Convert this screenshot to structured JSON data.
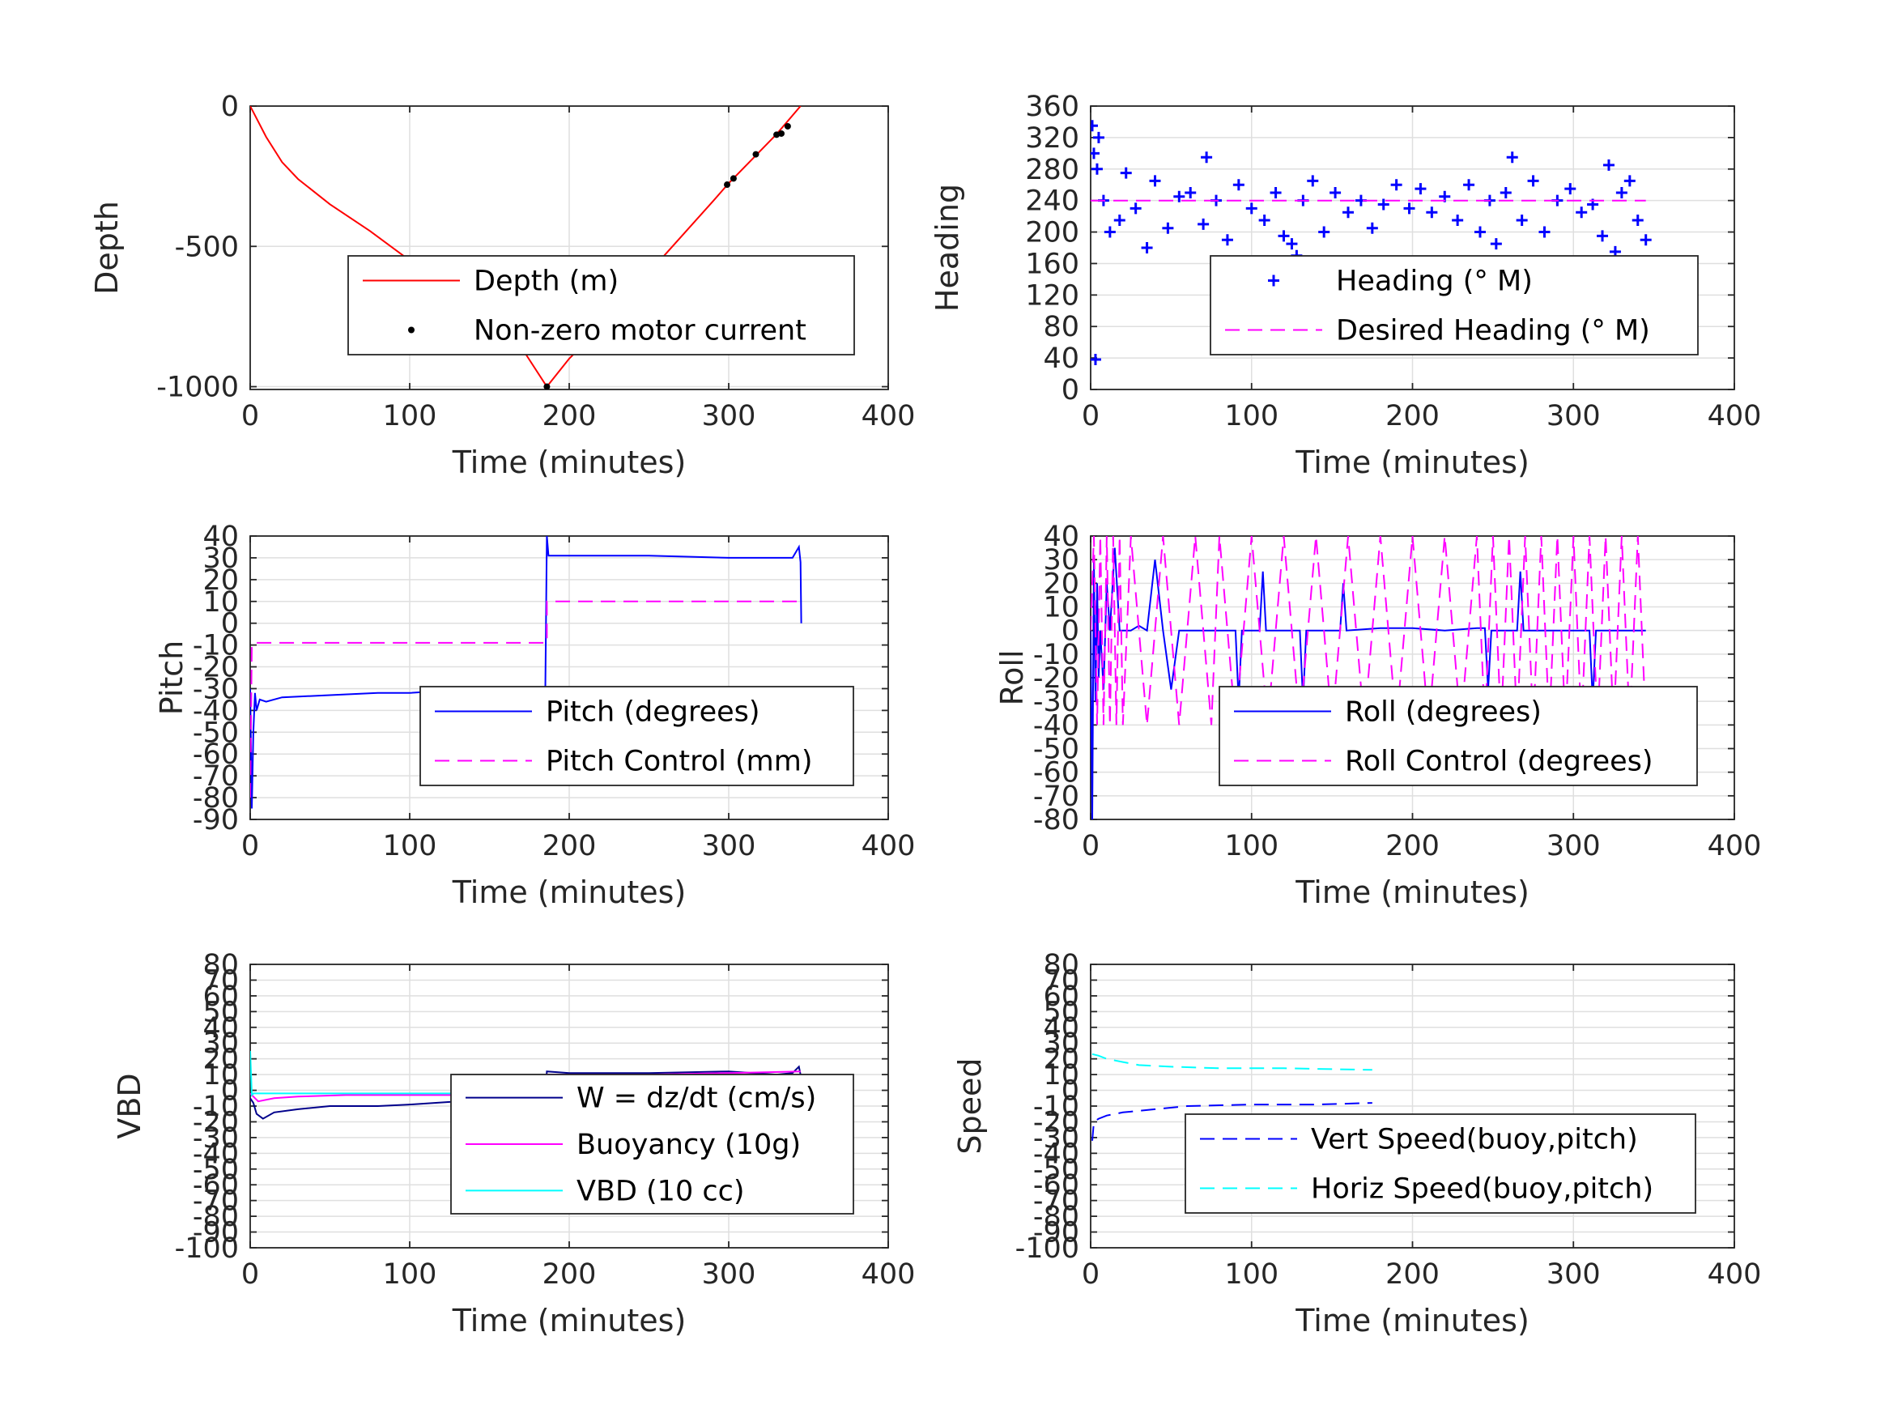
{
  "chart_data": [
    {
      "id": "depth",
      "type": "line",
      "xlabel": "Time (minutes)",
      "ylabel": "Depth",
      "xlim": [
        0,
        400
      ],
      "ylim": [
        -1010,
        0
      ],
      "xticks": [
        0,
        100,
        200,
        300,
        400
      ],
      "yticks": [
        -1000,
        -500,
        0
      ],
      "ytick_labels": [
        "-1000",
        "-500",
        "0"
      ],
      "grid": true,
      "legend_location": "south-east",
      "series": [
        {
          "name": "Depth (m)",
          "style": "solid",
          "marker": "none",
          "color": "#ff0000",
          "x": [
            0,
            10,
            20,
            30,
            50,
            75,
            100,
            125,
            150,
            170,
            186,
            200,
            230,
            260,
            290,
            300,
            318,
            330,
            345
          ],
          "y": [
            0,
            -110,
            -200,
            -260,
            -350,
            -445,
            -550,
            -660,
            -760,
            -860,
            -1000,
            -900,
            -730,
            -530,
            -340,
            -275,
            -170,
            -100,
            0
          ]
        },
        {
          "name": "Non-zero motor current",
          "style": "none",
          "marker": "dot",
          "color": "#000000",
          "x": [
            186,
            299,
            303,
            317,
            330,
            333,
            337
          ],
          "y": [
            -1000,
            -280,
            -258,
            -172,
            -102,
            -98,
            -72
          ]
        }
      ]
    },
    {
      "id": "heading",
      "type": "scatter",
      "xlabel": "Time (minutes)",
      "ylabel": "Heading",
      "xlim": [
        0,
        400
      ],
      "ylim": [
        0,
        360
      ],
      "xticks": [
        0,
        100,
        200,
        300,
        400
      ],
      "yticks": [
        0,
        40,
        80,
        120,
        160,
        200,
        240,
        280,
        320,
        360
      ],
      "grid": true,
      "legend_location": "south-east",
      "series": [
        {
          "name": "Heading (° M)",
          "style": "none",
          "marker": "plus",
          "color": "#0000ff",
          "x": [
            1,
            2,
            3,
            4,
            5,
            8,
            12,
            18,
            22,
            28,
            35,
            40,
            48,
            55,
            62,
            70,
            72,
            78,
            85,
            92,
            100,
            108,
            115,
            120,
            125,
            128,
            132,
            138,
            145,
            152,
            160,
            168,
            175,
            182,
            190,
            198,
            205,
            212,
            220,
            228,
            235,
            242,
            248,
            252,
            258,
            262,
            268,
            275,
            282,
            290,
            298,
            305,
            312,
            318,
            322,
            326,
            330,
            335,
            340,
            345
          ],
          "y": [
            335,
            300,
            38,
            280,
            320,
            240,
            200,
            215,
            275,
            230,
            180,
            265,
            205,
            245,
            250,
            210,
            295,
            240,
            190,
            260,
            230,
            215,
            250,
            195,
            185,
            170,
            240,
            265,
            200,
            250,
            225,
            240,
            205,
            235,
            260,
            230,
            255,
            225,
            245,
            215,
            260,
            200,
            240,
            185,
            250,
            295,
            215,
            265,
            200,
            240,
            255,
            225,
            235,
            195,
            285,
            175,
            250,
            265,
            215,
            190
          ]
        },
        {
          "name": "Desired Heading (° M)",
          "style": "dashed",
          "marker": "none",
          "color": "#ff00ff",
          "x": [
            0,
            345
          ],
          "y": [
            240,
            240
          ]
        }
      ]
    },
    {
      "id": "pitch",
      "type": "line",
      "xlabel": "Time (minutes)",
      "ylabel": "Pitch",
      "xlim": [
        0,
        400
      ],
      "ylim": [
        -90,
        40
      ],
      "xticks": [
        0,
        100,
        200,
        300,
        400
      ],
      "yticks": [
        -90,
        -80,
        -70,
        -60,
        -50,
        -40,
        -30,
        -20,
        -10,
        0,
        10,
        20,
        30,
        40
      ],
      "grid": true,
      "legend_location": "south-east",
      "series": [
        {
          "name": "Pitch (degrees)",
          "style": "solid",
          "marker": "none",
          "color": "#0000ff",
          "x": [
            0,
            1,
            2,
            3,
            4,
            6,
            10,
            20,
            50,
            80,
            100,
            120,
            150,
            170,
            185,
            186,
            187,
            200,
            250,
            300,
            330,
            340,
            344,
            345,
            345.5
          ],
          "y": [
            -30,
            -85,
            -50,
            -32,
            -40,
            -35,
            -36,
            -34,
            -33,
            -32,
            -32,
            -31,
            -32,
            -31,
            -30,
            40,
            31,
            31,
            31,
            30,
            30,
            30,
            35,
            28,
            0
          ]
        },
        {
          "name": "Pitch Control (mm)",
          "style": "dashed",
          "marker": "none",
          "color": "#ff00ff",
          "x": [
            0,
            1,
            2,
            186,
            186,
            345
          ],
          "y": [
            -80,
            -10,
            -9,
            -9,
            10,
            10
          ]
        }
      ]
    },
    {
      "id": "roll",
      "type": "line",
      "xlabel": "Time (minutes)",
      "ylabel": "Roll",
      "xlim": [
        0,
        400
      ],
      "ylim": [
        -80,
        40
      ],
      "xticks": [
        0,
        100,
        200,
        300,
        400
      ],
      "yticks": [
        -80,
        -70,
        -60,
        -50,
        -40,
        -30,
        -20,
        -10,
        0,
        10,
        20,
        30,
        40
      ],
      "grid": true,
      "legend_location": "south-east",
      "series": [
        {
          "name": "Roll (degrees)",
          "style": "solid",
          "marker": "none",
          "color": "#0000ff",
          "x": [
            0,
            1,
            2,
            3,
            4,
            5,
            6,
            8,
            10,
            12,
            15,
            18,
            25,
            30,
            35,
            40,
            45,
            50,
            55,
            60,
            70,
            80,
            90,
            92,
            94,
            100,
            105,
            107,
            109,
            120,
            130,
            132,
            134,
            150,
            155,
            157,
            159,
            180,
            200,
            220,
            240,
            245,
            247,
            249,
            260,
            265,
            267,
            269,
            280,
            300,
            310,
            312,
            314,
            330,
            340,
            345
          ],
          "y": [
            0,
            -80,
            30,
            -30,
            20,
            -20,
            0,
            -25,
            20,
            0,
            35,
            0,
            0,
            2,
            0,
            30,
            0,
            -25,
            0,
            0,
            0,
            0,
            0,
            -30,
            0,
            0,
            0,
            25,
            0,
            0,
            0,
            -30,
            0,
            0,
            0,
            20,
            0,
            1,
            1,
            0,
            1,
            1,
            -25,
            0,
            0,
            0,
            25,
            0,
            0,
            0,
            0,
            -30,
            0,
            0,
            0,
            0
          ]
        },
        {
          "name": "Roll Control (degrees)",
          "style": "dashed",
          "marker": "none",
          "color": "#ff00ff",
          "x": [
            0,
            2,
            4,
            6,
            8,
            10,
            12,
            14,
            16,
            18,
            20,
            25,
            35,
            45,
            55,
            65,
            75,
            80,
            90,
            100,
            110,
            120,
            130,
            140,
            150,
            160,
            170,
            180,
            190,
            200,
            210,
            220,
            230,
            240,
            245,
            250,
            255,
            260,
            265,
            270,
            275,
            280,
            285,
            290,
            295,
            300,
            305,
            310,
            315,
            320,
            325,
            330,
            335,
            340,
            345
          ],
          "y": [
            0,
            40,
            -40,
            40,
            -40,
            40,
            -40,
            40,
            -40,
            40,
            -40,
            40,
            -40,
            40,
            -40,
            40,
            -40,
            40,
            -40,
            40,
            -40,
            40,
            -40,
            40,
            -40,
            40,
            -40,
            40,
            -40,
            40,
            -40,
            40,
            -40,
            40,
            -40,
            40,
            -40,
            40,
            -40,
            40,
            -40,
            40,
            -40,
            40,
            -40,
            40,
            -40,
            40,
            -40,
            40,
            -40,
            40,
            -40,
            40,
            -40
          ]
        }
      ]
    },
    {
      "id": "vbd",
      "type": "line",
      "xlabel": "Time (minutes)",
      "ylabel": "VBD",
      "xlim": [
        0,
        400
      ],
      "ylim": [
        -100,
        80
      ],
      "xticks": [
        0,
        100,
        200,
        300,
        400
      ],
      "yticks": [
        -100,
        -90,
        -80,
        -70,
        -60,
        -50,
        -40,
        -30,
        -20,
        -10,
        0,
        10,
        20,
        30,
        40,
        50,
        60,
        70,
        80
      ],
      "ytick_labels": [
        "-100",
        "-90",
        "-80",
        "-70",
        "-60",
        "-50",
        "-40",
        "-30",
        "-20",
        "-10",
        "0",
        "10",
        "20",
        "30",
        "40",
        "50",
        "60",
        "70",
        "80"
      ],
      "grid": true,
      "legend_location": "south-east",
      "series": [
        {
          "name": "W = dz/dt (cm/s)",
          "style": "solid",
          "marker": "none",
          "color": "#00008b",
          "x": [
            0,
            2,
            4,
            8,
            15,
            30,
            50,
            80,
            100,
            130,
            160,
            185,
            186,
            200,
            250,
            300,
            330,
            340,
            344,
            345
          ],
          "y": [
            -5,
            -8,
            -15,
            -18,
            -14,
            -12,
            -10,
            -10,
            -9,
            -7,
            -4,
            -3,
            12,
            11,
            11,
            12,
            10,
            11,
            15,
            10
          ]
        },
        {
          "name": "Buoyancy (10g)",
          "style": "solid",
          "marker": "none",
          "color": "#ff00ff",
          "x": [
            0,
            5,
            15,
            30,
            60,
            100,
            150,
            185,
            186,
            200,
            250,
            300,
            345
          ],
          "y": [
            -2,
            -7,
            -5,
            -4,
            -3,
            -3,
            -3,
            -3,
            10,
            10,
            10,
            11,
            12
          ]
        },
        {
          "name": "VBD (10 cc)",
          "style": "solid",
          "marker": "none",
          "color": "#00ffff",
          "x": [
            0,
            1,
            2,
            186,
            187,
            250,
            300,
            345
          ],
          "y": [
            25,
            -3,
            -2,
            -2,
            5,
            5,
            6,
            7
          ]
        }
      ]
    },
    {
      "id": "speed",
      "type": "line",
      "xlabel": "Time (minutes)",
      "ylabel": "Speed",
      "xlim": [
        0,
        400
      ],
      "ylim": [
        -100,
        80
      ],
      "xticks": [
        0,
        100,
        200,
        300,
        400
      ],
      "yticks": [
        -100,
        -90,
        -80,
        -70,
        -60,
        -50,
        -40,
        -30,
        -20,
        -10,
        0,
        10,
        20,
        30,
        40,
        50,
        60,
        70,
        80
      ],
      "ytick_labels": [
        "-100",
        "-90",
        "-80",
        "-70",
        "-60",
        "-50",
        "-40",
        "-30",
        "-20",
        "-10",
        "0",
        "10",
        "20",
        "30",
        "40",
        "50",
        "60",
        "70",
        "80"
      ],
      "grid": true,
      "legend_location": "south-east",
      "series": [
        {
          "name": "Vert Speed(buoy,pitch)",
          "style": "dashed",
          "marker": "none",
          "color": "#0000ff",
          "x": [
            1,
            2,
            5,
            10,
            20,
            40,
            60,
            100,
            140,
            175
          ],
          "y": [
            -32,
            -20,
            -18,
            -16,
            -14,
            -12,
            -10,
            -9,
            -9,
            -8
          ]
        },
        {
          "name": "Horiz Speed(buoy,pitch)",
          "style": "dashed",
          "marker": "none",
          "color": "#00ffff",
          "x": [
            1,
            5,
            10,
            20,
            30,
            50,
            80,
            120,
            175
          ],
          "y": [
            23,
            22,
            20,
            18,
            16,
            15,
            14,
            14,
            13
          ]
        }
      ]
    }
  ]
}
